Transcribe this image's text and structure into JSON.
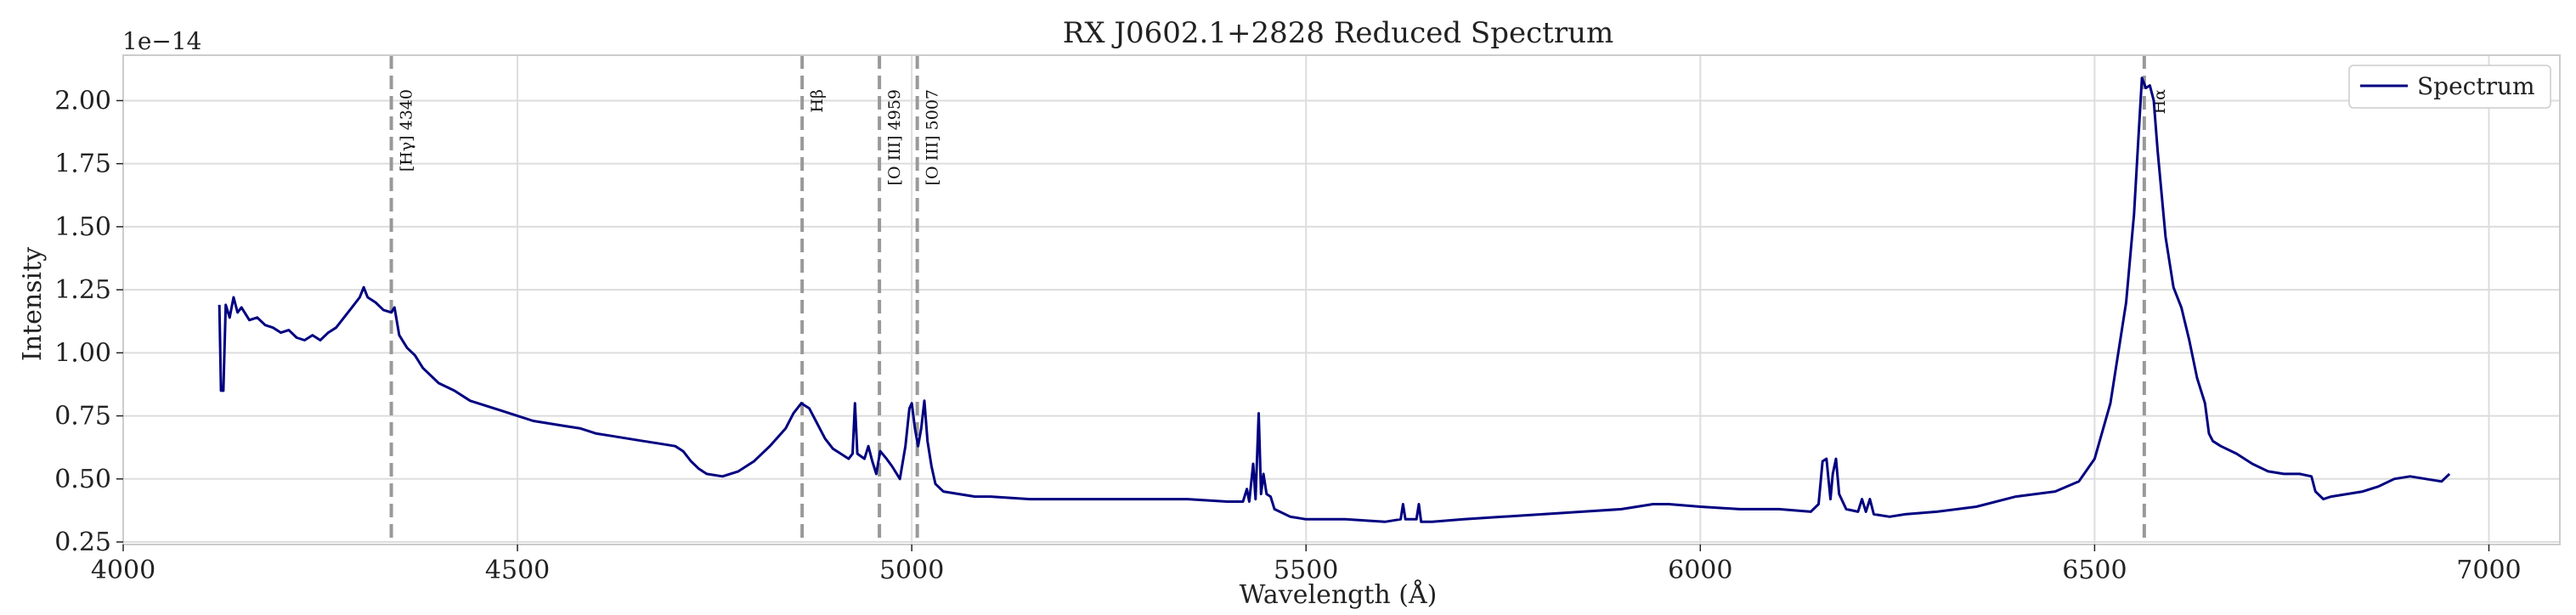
{
  "chart_data": {
    "type": "line",
    "title": "RX J0602.1+2828 Reduced Spectrum",
    "xlabel": "Wavelength (Å)",
    "ylabel": "Intensity",
    "y_offset_label": "1e−14",
    "xlim": [
      4000,
      7090
    ],
    "ylim": [
      0.24,
      2.18
    ],
    "xticks": [
      4000,
      4500,
      5000,
      5500,
      6000,
      6500,
      7000
    ],
    "yticks": [
      0.25,
      0.5,
      0.75,
      1.0,
      1.25,
      1.5,
      1.75,
      2.0
    ],
    "ytick_labels": [
      "0.25",
      "0.50",
      "0.75",
      "1.00",
      "1.25",
      "1.50",
      "1.75",
      "2.00"
    ],
    "grid": true,
    "legend_position": "top-right",
    "series": [
      {
        "name": "Spectrum",
        "color": "#000080",
        "points": [
          [
            4122,
            1.19
          ],
          [
            4124,
            0.85
          ],
          [
            4127,
            0.85
          ],
          [
            4130,
            1.19
          ],
          [
            4135,
            1.14
          ],
          [
            4140,
            1.22
          ],
          [
            4145,
            1.16
          ],
          [
            4150,
            1.18
          ],
          [
            4160,
            1.13
          ],
          [
            4170,
            1.14
          ],
          [
            4180,
            1.11
          ],
          [
            4190,
            1.1
          ],
          [
            4200,
            1.08
          ],
          [
            4210,
            1.09
          ],
          [
            4220,
            1.06
          ],
          [
            4230,
            1.05
          ],
          [
            4240,
            1.07
          ],
          [
            4250,
            1.05
          ],
          [
            4260,
            1.08
          ],
          [
            4270,
            1.1
          ],
          [
            4280,
            1.14
          ],
          [
            4290,
            1.18
          ],
          [
            4300,
            1.22
          ],
          [
            4305,
            1.26
          ],
          [
            4310,
            1.22
          ],
          [
            4320,
            1.2
          ],
          [
            4330,
            1.17
          ],
          [
            4340,
            1.16
          ],
          [
            4344,
            1.18
          ],
          [
            4350,
            1.07
          ],
          [
            4360,
            1.02
          ],
          [
            4370,
            0.99
          ],
          [
            4380,
            0.94
          ],
          [
            4390,
            0.91
          ],
          [
            4400,
            0.88
          ],
          [
            4420,
            0.85
          ],
          [
            4440,
            0.81
          ],
          [
            4460,
            0.79
          ],
          [
            4480,
            0.77
          ],
          [
            4500,
            0.75
          ],
          [
            4520,
            0.73
          ],
          [
            4540,
            0.72
          ],
          [
            4560,
            0.71
          ],
          [
            4580,
            0.7
          ],
          [
            4600,
            0.68
          ],
          [
            4620,
            0.67
          ],
          [
            4640,
            0.66
          ],
          [
            4660,
            0.65
          ],
          [
            4680,
            0.64
          ],
          [
            4700,
            0.63
          ],
          [
            4710,
            0.61
          ],
          [
            4720,
            0.57
          ],
          [
            4730,
            0.54
          ],
          [
            4740,
            0.52
          ],
          [
            4760,
            0.51
          ],
          [
            4780,
            0.53
          ],
          [
            4800,
            0.57
          ],
          [
            4820,
            0.63
          ],
          [
            4840,
            0.7
          ],
          [
            4850,
            0.76
          ],
          [
            4860,
            0.8
          ],
          [
            4870,
            0.78
          ],
          [
            4880,
            0.72
          ],
          [
            4890,
            0.66
          ],
          [
            4900,
            0.62
          ],
          [
            4910,
            0.6
          ],
          [
            4920,
            0.58
          ],
          [
            4925,
            0.6
          ],
          [
            4928,
            0.8
          ],
          [
            4931,
            0.6
          ],
          [
            4940,
            0.58
          ],
          [
            4945,
            0.63
          ],
          [
            4950,
            0.57
          ],
          [
            4955,
            0.52
          ],
          [
            4960,
            0.61
          ],
          [
            4968,
            0.58
          ],
          [
            4975,
            0.55
          ],
          [
            4985,
            0.5
          ],
          [
            4992,
            0.63
          ],
          [
            4997,
            0.78
          ],
          [
            5000,
            0.8
          ],
          [
            5004,
            0.7
          ],
          [
            5008,
            0.63
          ],
          [
            5012,
            0.7
          ],
          [
            5016,
            0.81
          ],
          [
            5020,
            0.65
          ],
          [
            5025,
            0.55
          ],
          [
            5030,
            0.48
          ],
          [
            5040,
            0.45
          ],
          [
            5060,
            0.44
          ],
          [
            5080,
            0.43
          ],
          [
            5100,
            0.43
          ],
          [
            5150,
            0.42
          ],
          [
            5200,
            0.42
          ],
          [
            5250,
            0.42
          ],
          [
            5300,
            0.42
          ],
          [
            5350,
            0.42
          ],
          [
            5400,
            0.41
          ],
          [
            5420,
            0.41
          ],
          [
            5425,
            0.46
          ],
          [
            5428,
            0.41
          ],
          [
            5433,
            0.56
          ],
          [
            5436,
            0.42
          ],
          [
            5440,
            0.76
          ],
          [
            5443,
            0.44
          ],
          [
            5446,
            0.52
          ],
          [
            5450,
            0.44
          ],
          [
            5455,
            0.43
          ],
          [
            5460,
            0.38
          ],
          [
            5480,
            0.35
          ],
          [
            5500,
            0.34
          ],
          [
            5550,
            0.34
          ],
          [
            5600,
            0.33
          ],
          [
            5620,
            0.34
          ],
          [
            5623,
            0.4
          ],
          [
            5626,
            0.34
          ],
          [
            5640,
            0.34
          ],
          [
            5643,
            0.4
          ],
          [
            5646,
            0.33
          ],
          [
            5660,
            0.33
          ],
          [
            5700,
            0.34
          ],
          [
            5750,
            0.35
          ],
          [
            5800,
            0.36
          ],
          [
            5850,
            0.37
          ],
          [
            5900,
            0.38
          ],
          [
            5940,
            0.4
          ],
          [
            5960,
            0.4
          ],
          [
            6000,
            0.39
          ],
          [
            6050,
            0.38
          ],
          [
            6100,
            0.38
          ],
          [
            6140,
            0.37
          ],
          [
            6150,
            0.4
          ],
          [
            6155,
            0.57
          ],
          [
            6160,
            0.58
          ],
          [
            6165,
            0.42
          ],
          [
            6168,
            0.52
          ],
          [
            6172,
            0.58
          ],
          [
            6176,
            0.44
          ],
          [
            6185,
            0.38
          ],
          [
            6200,
            0.37
          ],
          [
            6205,
            0.42
          ],
          [
            6210,
            0.37
          ],
          [
            6215,
            0.42
          ],
          [
            6220,
            0.36
          ],
          [
            6240,
            0.35
          ],
          [
            6260,
            0.36
          ],
          [
            6300,
            0.37
          ],
          [
            6350,
            0.39
          ],
          [
            6400,
            0.43
          ],
          [
            6450,
            0.45
          ],
          [
            6480,
            0.49
          ],
          [
            6500,
            0.58
          ],
          [
            6520,
            0.8
          ],
          [
            6540,
            1.2
          ],
          [
            6550,
            1.55
          ],
          [
            6555,
            1.82
          ],
          [
            6560,
            2.09
          ],
          [
            6565,
            2.05
          ],
          [
            6570,
            2.06
          ],
          [
            6575,
            2.0
          ],
          [
            6580,
            1.8
          ],
          [
            6590,
            1.46
          ],
          [
            6600,
            1.26
          ],
          [
            6610,
            1.18
          ],
          [
            6620,
            1.05
          ],
          [
            6630,
            0.9
          ],
          [
            6640,
            0.8
          ],
          [
            6645,
            0.68
          ],
          [
            6650,
            0.65
          ],
          [
            6660,
            0.63
          ],
          [
            6680,
            0.6
          ],
          [
            6700,
            0.56
          ],
          [
            6720,
            0.53
          ],
          [
            6740,
            0.52
          ],
          [
            6760,
            0.52
          ],
          [
            6775,
            0.51
          ],
          [
            6780,
            0.45
          ],
          [
            6790,
            0.42
          ],
          [
            6800,
            0.43
          ],
          [
            6820,
            0.44
          ],
          [
            6840,
            0.45
          ],
          [
            6860,
            0.47
          ],
          [
            6880,
            0.5
          ],
          [
            6900,
            0.51
          ],
          [
            6920,
            0.5
          ],
          [
            6940,
            0.49
          ],
          [
            6950,
            0.52
          ]
        ]
      }
    ],
    "annotations": [
      {
        "x": 4340,
        "label": "[Hγ] 4340"
      },
      {
        "x": 4861,
        "label": "Hβ"
      },
      {
        "x": 4959,
        "label": "[O III] 4959"
      },
      {
        "x": 5007,
        "label": "[O III] 5007"
      },
      {
        "x": 6563,
        "label": "Hα"
      }
    ],
    "colors": {
      "line": "#000080",
      "annotation_line": "#999999",
      "grid": "#dddddd",
      "axes_edge": "#cccccc",
      "text": "#222222"
    }
  }
}
